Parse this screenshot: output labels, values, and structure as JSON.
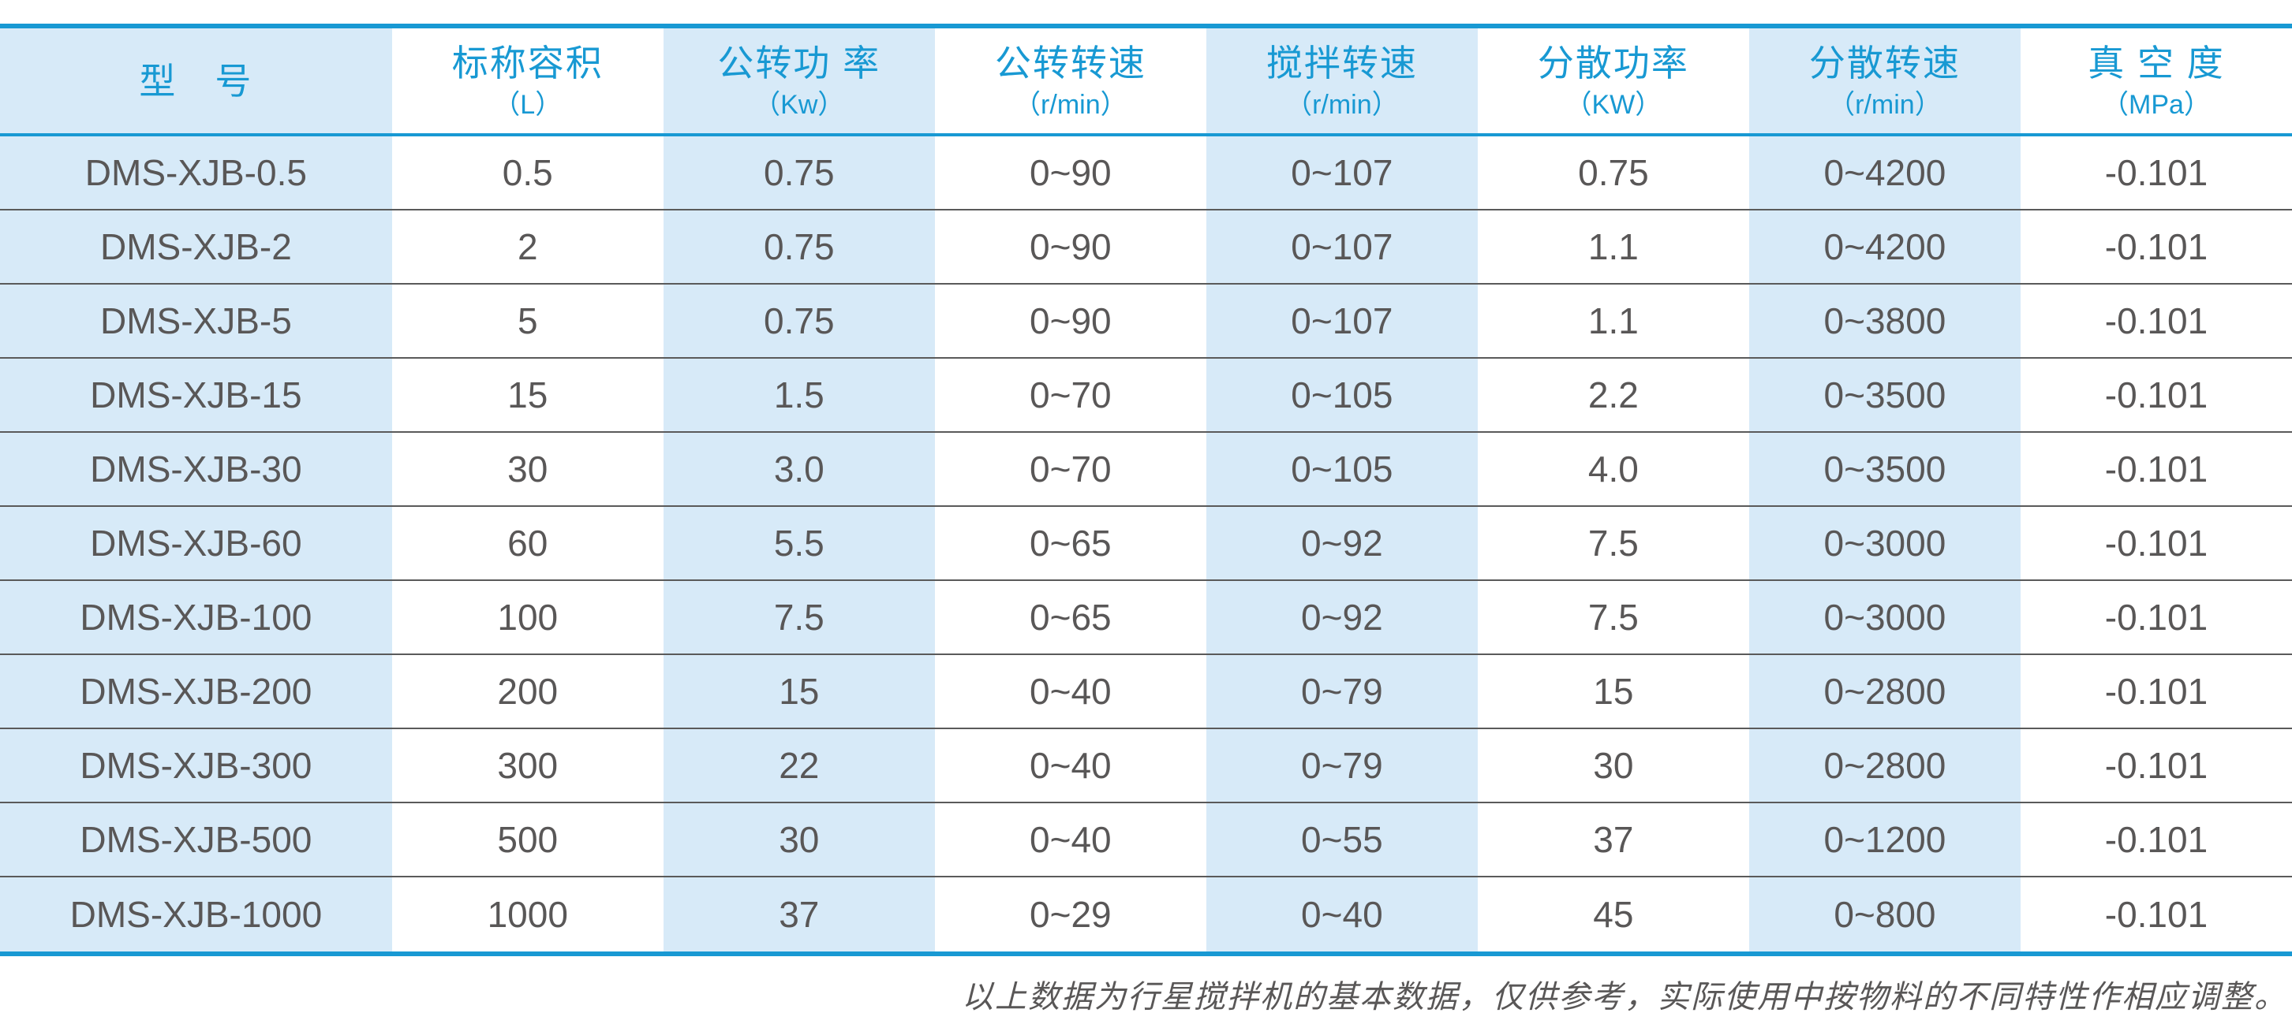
{
  "colors": {
    "accent_blue": "#1899d3",
    "stripe_blue": "#d7eaf8",
    "header_text_blue": "#1899d3",
    "body_text_gray": "#595757",
    "row_line_gray": "#5a5a5a",
    "page_background": "#ffffff"
  },
  "table": {
    "columns": [
      {
        "id": "model",
        "label": "型　号",
        "unit": ""
      },
      {
        "id": "nominal-volume",
        "label": "标称容积",
        "unit": "（L）"
      },
      {
        "id": "revolution-power",
        "label": "公转功 率",
        "unit": "（Kw）"
      },
      {
        "id": "revolution-speed",
        "label": "公转转速",
        "unit": "（r/min）"
      },
      {
        "id": "stirring-speed",
        "label": "搅拌转速",
        "unit": "（r/min）"
      },
      {
        "id": "dispersion-power",
        "label": "分散功率",
        "unit": "（KW）"
      },
      {
        "id": "dispersion-speed",
        "label": "分散转速",
        "unit": "（r/min）"
      },
      {
        "id": "vacuum-degree",
        "label": "真 空 度",
        "unit": "（MPa）"
      }
    ],
    "rows": [
      [
        "DMS-XJB-0.5",
        "0.5",
        "0.75",
        "0~90",
        "0~107",
        "0.75",
        "0~4200",
        "-0.101"
      ],
      [
        "DMS-XJB-2",
        "2",
        "0.75",
        "0~90",
        "0~107",
        "1.1",
        "0~4200",
        "-0.101"
      ],
      [
        "DMS-XJB-5",
        "5",
        "0.75",
        "0~90",
        "0~107",
        "1.1",
        "0~3800",
        "-0.101"
      ],
      [
        "DMS-XJB-15",
        "15",
        "1.5",
        "0~70",
        "0~105",
        "2.2",
        "0~3500",
        "-0.101"
      ],
      [
        "DMS-XJB-30",
        "30",
        "3.0",
        "0~70",
        "0~105",
        "4.0",
        "0~3500",
        "-0.101"
      ],
      [
        "DMS-XJB-60",
        "60",
        "5.5",
        "0~65",
        "0~92",
        "7.5",
        "0~3000",
        "-0.101"
      ],
      [
        "DMS-XJB-100",
        "100",
        "7.5",
        "0~65",
        "0~92",
        "7.5",
        "0~3000",
        "-0.101"
      ],
      [
        "DMS-XJB-200",
        "200",
        "15",
        "0~40",
        "0~79",
        "15",
        "0~2800",
        "-0.101"
      ],
      [
        "DMS-XJB-300",
        "300",
        "22",
        "0~40",
        "0~79",
        "30",
        "0~2800",
        "-0.101"
      ],
      [
        "DMS-XJB-500",
        "500",
        "30",
        "0~40",
        "0~55",
        "37",
        "0~1200",
        "-0.101"
      ],
      [
        "DMS-XJB-1000",
        "1000",
        "37",
        "0~29",
        "0~40",
        "45",
        "0~800",
        "-0.101"
      ]
    ]
  },
  "footnote": "以上数据为行星搅拌机的基本数据，仅供参考，实际使用中按物料的不同特性作相应调整。"
}
